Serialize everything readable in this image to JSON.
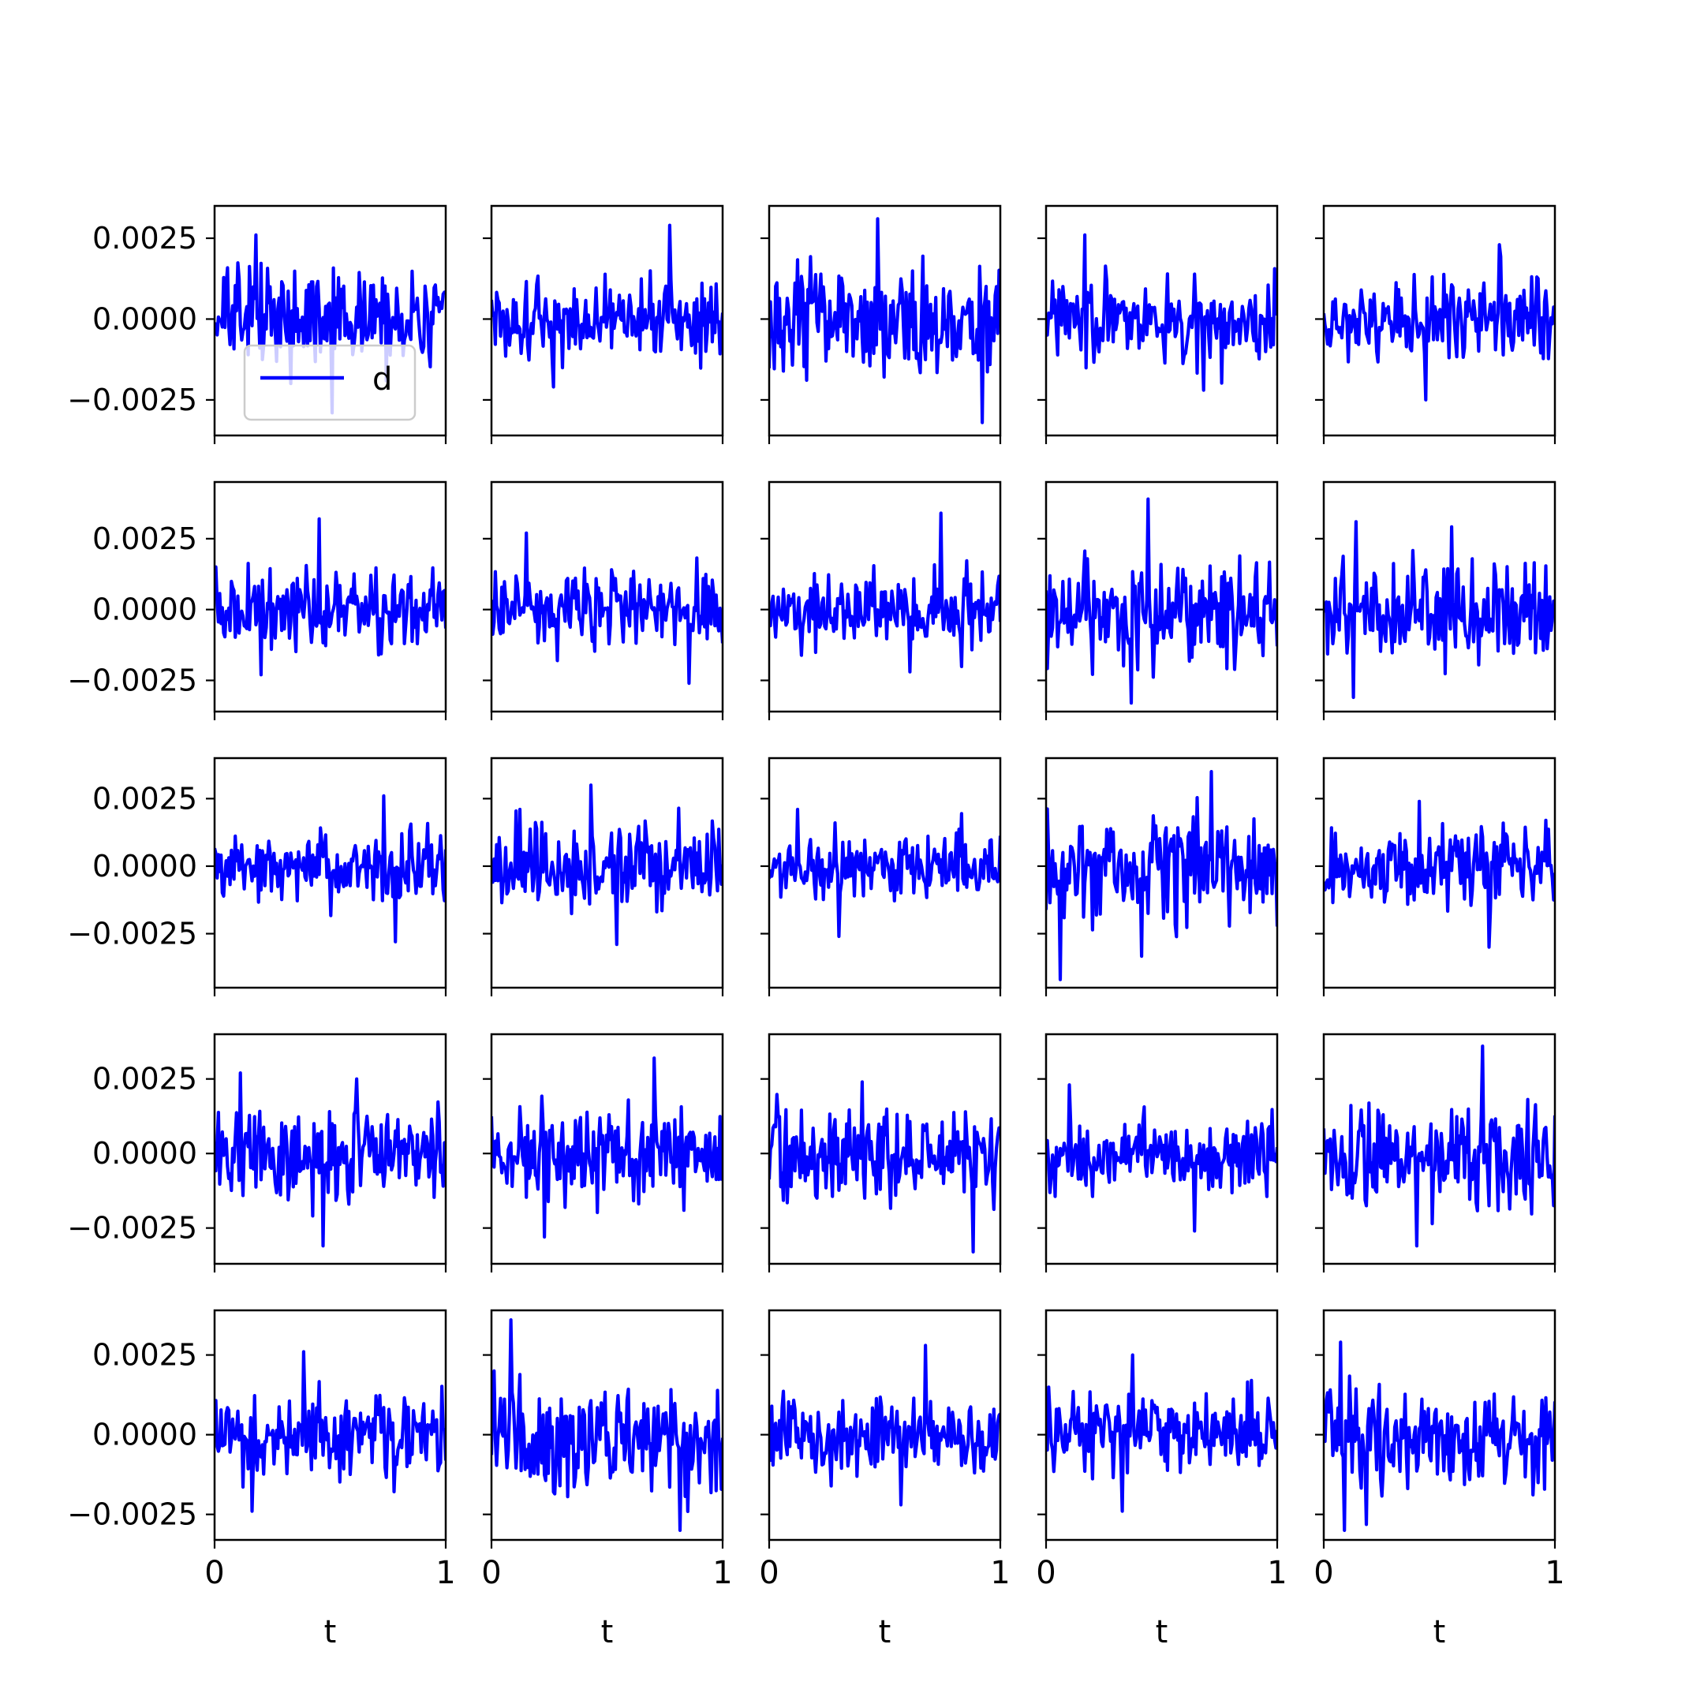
{
  "chart_data": {
    "type": "line",
    "layout": "5x5 grid of subplots, shared x and y axes",
    "xlabel": "t",
    "ylabel": "",
    "xlim": [
      0,
      1
    ],
    "xticks": [
      "0",
      "1"
    ],
    "yticks_by_row": [
      [
        "0.0025",
        "0.0000",
        "−0.0025"
      ],
      [
        "0.0025",
        "0.0000",
        "−0.0025"
      ],
      [
        "0.0025",
        "0.0000",
        "−0.0025"
      ],
      [
        "0.0025",
        "0.0000",
        "−0.0025"
      ],
      [
        "0.0025",
        "0.0000",
        "−0.0025"
      ]
    ],
    "ylim_by_row": [
      [
        -0.0036,
        0.0035
      ],
      [
        -0.0036,
        0.0045
      ],
      [
        -0.0045,
        0.004
      ],
      [
        -0.0037,
        0.004
      ],
      [
        -0.0033,
        0.0039
      ]
    ],
    "series_color": "#0000ff",
    "legend": {
      "label": "d",
      "location": "lower-left",
      "in_subplot": [
        0,
        0
      ]
    },
    "grid": false,
    "note_on_values": "each panel is a high-frequency noise series of ~180 samples; values below are the readable extremes of each panel",
    "panels": [
      {
        "row": 0,
        "col": 0,
        "y_max": 0.0026,
        "y_min": -0.0029
      },
      {
        "row": 0,
        "col": 1,
        "y_max": 0.0029,
        "y_min": -0.0021
      },
      {
        "row": 0,
        "col": 2,
        "y_max": 0.0031,
        "y_min": -0.0032
      },
      {
        "row": 0,
        "col": 3,
        "y_max": 0.0026,
        "y_min": -0.0022
      },
      {
        "row": 0,
        "col": 4,
        "y_max": 0.0023,
        "y_min": -0.0025
      },
      {
        "row": 1,
        "col": 0,
        "y_max": 0.0032,
        "y_min": -0.0023
      },
      {
        "row": 1,
        "col": 1,
        "y_max": 0.0027,
        "y_min": -0.0026
      },
      {
        "row": 1,
        "col": 2,
        "y_max": 0.0034,
        "y_min": -0.0022
      },
      {
        "row": 1,
        "col": 3,
        "y_max": 0.0039,
        "y_min": -0.0033
      },
      {
        "row": 1,
        "col": 4,
        "y_max": 0.0031,
        "y_min": -0.0031
      },
      {
        "row": 2,
        "col": 0,
        "y_max": 0.0026,
        "y_min": -0.0028
      },
      {
        "row": 2,
        "col": 1,
        "y_max": 0.003,
        "y_min": -0.0029
      },
      {
        "row": 2,
        "col": 2,
        "y_max": 0.0021,
        "y_min": -0.0026
      },
      {
        "row": 2,
        "col": 3,
        "y_max": 0.0035,
        "y_min": -0.0042
      },
      {
        "row": 2,
        "col": 4,
        "y_max": 0.0024,
        "y_min": -0.003
      },
      {
        "row": 3,
        "col": 0,
        "y_max": 0.0027,
        "y_min": -0.0031
      },
      {
        "row": 3,
        "col": 1,
        "y_max": 0.0032,
        "y_min": -0.0028
      },
      {
        "row": 3,
        "col": 2,
        "y_max": 0.0024,
        "y_min": -0.0033
      },
      {
        "row": 3,
        "col": 3,
        "y_max": 0.0023,
        "y_min": -0.0026
      },
      {
        "row": 3,
        "col": 4,
        "y_max": 0.0036,
        "y_min": -0.0031
      },
      {
        "row": 4,
        "col": 0,
        "y_max": 0.0026,
        "y_min": -0.0024
      },
      {
        "row": 4,
        "col": 1,
        "y_max": 0.0036,
        "y_min": -0.003
      },
      {
        "row": 4,
        "col": 2,
        "y_max": 0.0028,
        "y_min": -0.0022
      },
      {
        "row": 4,
        "col": 3,
        "y_max": 0.0025,
        "y_min": -0.0024
      },
      {
        "row": 4,
        "col": 4,
        "y_max": 0.0029,
        "y_min": -0.003
      }
    ]
  }
}
